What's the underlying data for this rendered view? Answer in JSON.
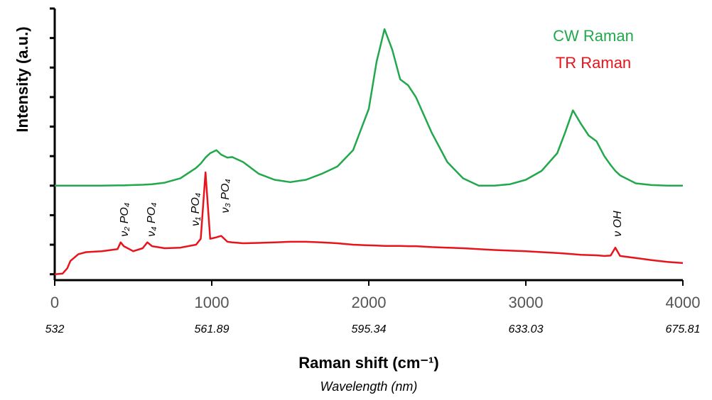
{
  "chart_data": {
    "type": "line",
    "ylabel": "Intensity (a.u.)",
    "xlabel": "Raman shift (cm⁻¹)",
    "x2label": "Wavelength (nm)",
    "xlim": [
      0,
      4000
    ],
    "xticks": [
      0,
      1000,
      2000,
      3000,
      4000
    ],
    "x2_labels": [
      532,
      561.89,
      595.34,
      633.03,
      675.81
    ],
    "ylim": [
      -0.2,
      9
    ],
    "yticks": [
      0,
      1,
      2,
      3,
      4,
      5,
      6,
      7,
      8,
      9
    ],
    "legend": "upper right",
    "x": [
      0,
      50,
      80,
      100,
      150,
      200,
      300,
      400,
      420,
      440,
      500,
      560,
      590,
      620,
      700,
      800,
      900,
      930,
      960,
      990,
      1030,
      1060,
      1100,
      1130,
      1200,
      1300,
      1400,
      1500,
      1600,
      1700,
      1800,
      1900,
      2000,
      2050,
      2100,
      2150,
      2200,
      2250,
      2300,
      2400,
      2500,
      2600,
      2700,
      2800,
      2900,
      3000,
      3100,
      3200,
      3250,
      3300,
      3350,
      3400,
      3450,
      3500,
      3540,
      3570,
      3600,
      3700,
      3800,
      3900,
      4000
    ],
    "series": [
      {
        "name": "CW Raman",
        "color": "#22a84c",
        "values": [
          3.0,
          3.0,
          3.0,
          3.0,
          3.0,
          3.0,
          3.0,
          3.01,
          3.01,
          3.01,
          3.02,
          3.03,
          3.04,
          3.05,
          3.1,
          3.25,
          3.6,
          3.75,
          3.95,
          4.1,
          4.2,
          4.05,
          3.95,
          3.97,
          3.8,
          3.4,
          3.2,
          3.12,
          3.2,
          3.4,
          3.65,
          4.2,
          5.6,
          7.2,
          8.3,
          7.6,
          6.6,
          6.4,
          6.0,
          4.8,
          3.8,
          3.25,
          3.0,
          3.0,
          3.05,
          3.2,
          3.5,
          4.1,
          4.8,
          5.55,
          5.1,
          4.7,
          4.5,
          4.0,
          3.7,
          3.5,
          3.35,
          3.08,
          3.02,
          3.0,
          3.0
        ]
      },
      {
        "name": "TR Raman",
        "color": "#e8141c",
        "values": [
          0,
          0.02,
          0.2,
          0.45,
          0.68,
          0.75,
          0.78,
          0.85,
          1.08,
          0.95,
          0.78,
          0.88,
          1.08,
          0.95,
          0.88,
          0.9,
          1.0,
          1.2,
          3.45,
          1.2,
          1.25,
          1.3,
          1.1,
          1.08,
          1.05,
          1.06,
          1.08,
          1.1,
          1.1,
          1.08,
          1.05,
          1.0,
          0.98,
          0.97,
          0.96,
          0.96,
          0.96,
          0.95,
          0.95,
          0.92,
          0.9,
          0.88,
          0.85,
          0.82,
          0.8,
          0.78,
          0.75,
          0.72,
          0.7,
          0.68,
          0.66,
          0.65,
          0.64,
          0.62,
          0.63,
          0.9,
          0.62,
          0.55,
          0.48,
          0.42,
          0.38
        ]
      }
    ],
    "annotations": [
      {
        "text": "ν₂ PO₄",
        "x": 448,
        "y": 1.27
      },
      {
        "text": "ν₄ PO₄",
        "x": 620,
        "y": 1.27
      },
      {
        "text": "ν₁ PO₄",
        "x": 900,
        "y": 1.63
      },
      {
        "text": "ν₃ PO₄",
        "x": 1090,
        "y": 2.07
      },
      {
        "text": "ν OH",
        "x": 3588,
        "y": 1.27
      }
    ]
  }
}
